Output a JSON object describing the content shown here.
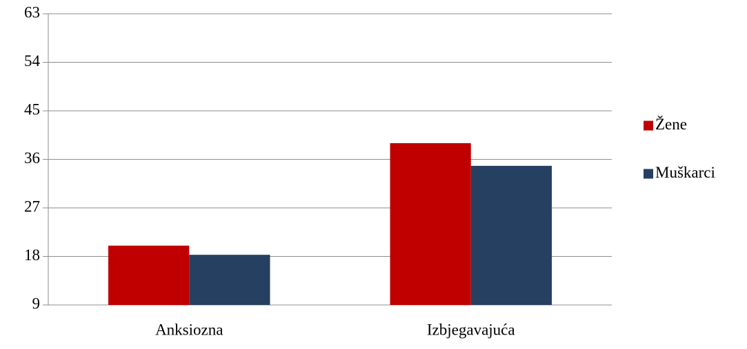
{
  "chart_data": {
    "type": "bar",
    "categories": [
      "Anksiozna",
      "Izbjegavajuća"
    ],
    "series": [
      {
        "name": "Žene",
        "color": "#c00000",
        "values": [
          20.0,
          39.0
        ]
      },
      {
        "name": "Muškarci",
        "color": "#264061",
        "values": [
          18.3,
          34.8
        ]
      }
    ],
    "ylim": [
      9,
      63
    ],
    "yticks": [
      9,
      18,
      27,
      36,
      45,
      54,
      63
    ],
    "grid": true,
    "legend": "right"
  }
}
